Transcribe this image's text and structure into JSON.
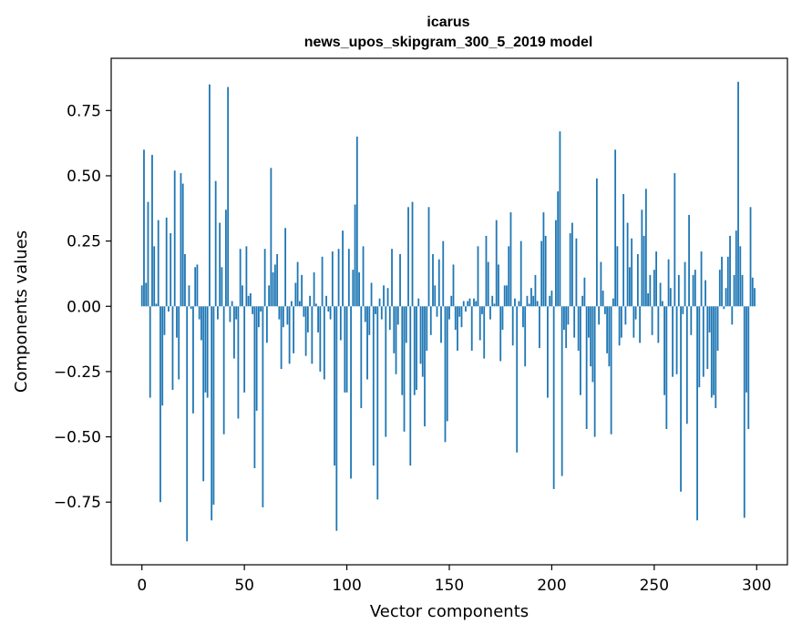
{
  "chart_data": {
    "type": "bar",
    "title": "icarus",
    "subtitle": "news_upos_skipgram_300_5_2019 model",
    "xlabel": "Vector components",
    "ylabel": "Components values",
    "xlim": [
      -15,
      315
    ],
    "ylim": [
      -0.99,
      0.95
    ],
    "xticks": [
      0,
      50,
      100,
      150,
      200,
      250,
      300
    ],
    "yticks": [
      0.75,
      0.5,
      0.25,
      0.0,
      -0.25,
      -0.5,
      -0.75
    ],
    "ytick_labels": [
      "0.75",
      "0.50",
      "0.25",
      "0.00",
      "−0.25",
      "−0.50",
      "−0.75"
    ],
    "color": "#1f77b4",
    "x": "0..299",
    "values": [
      0.08,
      0.6,
      0.09,
      0.4,
      -0.35,
      0.58,
      0.23,
      0.01,
      0.33,
      -0.75,
      -0.38,
      -0.11,
      0.34,
      -0.02,
      0.28,
      -0.32,
      0.52,
      -0.12,
      -0.28,
      0.51,
      0.47,
      0.2,
      -0.9,
      0.08,
      -0.01,
      -0.41,
      0.15,
      0.16,
      -0.05,
      -0.13,
      -0.67,
      -0.33,
      -0.35,
      0.85,
      -0.82,
      -0.76,
      0.48,
      -0.05,
      0.32,
      0.15,
      -0.49,
      0.37,
      0.84,
      -0.06,
      0.02,
      -0.2,
      -0.05,
      -0.43,
      0.22,
      0.08,
      -0.33,
      0.23,
      0.04,
      0.05,
      -0.03,
      -0.62,
      -0.4,
      -0.08,
      -0.02,
      -0.77,
      0.22,
      -0.14,
      0.08,
      0.53,
      0.13,
      0.16,
      0.2,
      -0.05,
      -0.24,
      -0.08,
      0.3,
      -0.07,
      -0.22,
      0.02,
      -0.18,
      0.09,
      0.17,
      0.02,
      0.12,
      -0.04,
      -0.19,
      -0.1,
      0.04,
      -0.22,
      0.13,
      0.01,
      -0.1,
      -0.25,
      0.19,
      -0.28,
      0.04,
      -0.02,
      -0.05,
      0.21,
      -0.61,
      -0.86,
      0.22,
      -0.13,
      0.29,
      -0.33,
      -0.33,
      0.22,
      -0.66,
      0.14,
      0.39,
      0.65,
      0.13,
      -0.39,
      0.23,
      -0.06,
      -0.28,
      -0.11,
      0.09,
      -0.61,
      -0.03,
      -0.74,
      0.03,
      -0.05,
      0.08,
      -0.5,
      0.07,
      -0.09,
      0.22,
      -0.18,
      -0.26,
      -0.07,
      0.2,
      -0.34,
      -0.48,
      -0.14,
      0.38,
      -0.61,
      0.4,
      -0.34,
      -0.32,
      0.03,
      -0.22,
      -0.27,
      -0.46,
      -0.17,
      0.38,
      -0.11,
      0.2,
      0.08,
      -0.04,
      0.18,
      -0.14,
      0.25,
      -0.52,
      -0.44,
      -0.05,
      0.04,
      0.16,
      -0.09,
      -0.17,
      -0.04,
      -0.08,
      0.02,
      -0.02,
      0.02,
      0.03,
      -0.17,
      0.03,
      0.02,
      0.23,
      -0.13,
      -0.03,
      -0.2,
      0.27,
      0.17,
      -0.05,
      0.04,
      0.01,
      0.33,
      0.16,
      -0.21,
      -0.09,
      0.08,
      0.08,
      0.23,
      0.36,
      -0.15,
      0.03,
      -0.56,
      0.02,
      0.25,
      -0.08,
      -0.23,
      0.04,
      0.01,
      0.07,
      0.04,
      0.12,
      0.02,
      -0.16,
      0.25,
      0.36,
      0.27,
      -0.35,
      0.04,
      0.06,
      -0.7,
      0.33,
      0.44,
      0.67,
      -0.65,
      -0.09,
      -0.16,
      -0.07,
      0.28,
      0.32,
      -0.12,
      0.26,
      -0.17,
      -0.34,
      0.04,
      0.11,
      -0.47,
      -0.12,
      -0.23,
      -0.29,
      -0.5,
      0.49,
      -0.07,
      0.17,
      0.06,
      -0.03,
      -0.18,
      -0.23,
      -0.49,
      0.03,
      0.6,
      0.23,
      -0.15,
      -0.12,
      0.43,
      -0.07,
      0.32,
      0.15,
      0.26,
      -0.12,
      -0.05,
      0.2,
      -0.14,
      0.37,
      0.27,
      0.45,
      0.05,
      0.12,
      -0.11,
      0.14,
      0.21,
      -0.14,
      0.09,
      0.02,
      -0.34,
      -0.47,
      0.18,
      0.07,
      -0.27,
      0.51,
      -0.26,
      0.12,
      -0.71,
      -0.03,
      0.17,
      -0.45,
      0.35,
      -0.11,
      0.12,
      0.14,
      -0.82,
      -0.31,
      0.21,
      -0.27,
      0.1,
      -0.24,
      -0.1,
      -0.35,
      -0.34,
      -0.39,
      -0.17,
      0.14,
      0.19,
      -0.01,
      0.07,
      0.19,
      0.27,
      -0.07,
      0.12,
      0.29,
      0.86,
      0.23,
      0.12,
      -0.81,
      -0.33,
      -0.47,
      0.38,
      0.11,
      0.07
    ]
  }
}
